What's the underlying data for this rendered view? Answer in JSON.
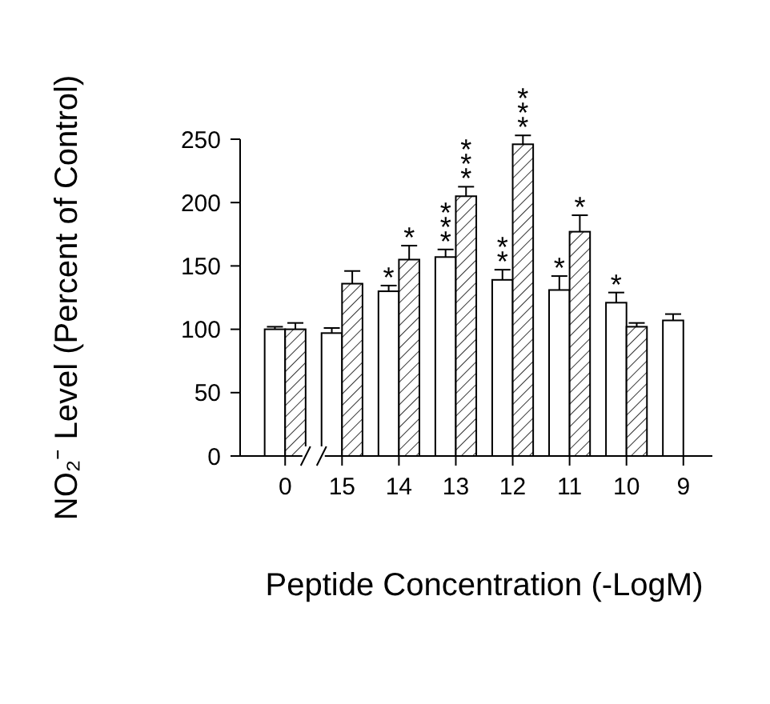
{
  "chart_data": {
    "type": "bar",
    "xlabel": "Peptide Concentration (-LogM)",
    "ylabel": "NO₂⁻ Level (Percent of Control)",
    "categories": [
      "0",
      "15",
      "14",
      "13",
      "12",
      "11",
      "10",
      "9"
    ],
    "ylim": [
      0,
      250
    ],
    "yticks": [
      0,
      50,
      100,
      150,
      200,
      250
    ],
    "series": [
      {
        "color": "#ffffff",
        "values": [
          100,
          97,
          130,
          157,
          139,
          131,
          121,
          107
        ],
        "errors": [
          2,
          4,
          4.5,
          6,
          8,
          11,
          8,
          5
        ]
      },
      {
        "color": "#000000",
        "values": [
          100,
          136,
          155,
          205,
          246,
          177,
          102,
          null
        ],
        "errors": [
          5,
          10,
          11,
          7.5,
          7,
          13,
          3,
          null
        ]
      }
    ],
    "annotations": [
      {
        "text": "*",
        "x": "14",
        "y": 130
      },
      {
        "text": "*",
        "x": "14",
        "y": 155
      },
      {
        "text": "***",
        "x": "13",
        "y": 157
      },
      {
        "text": "***",
        "x": "13",
        "y": 205
      },
      {
        "text": "**",
        "x": "12",
        "y": 139
      },
      {
        "text": "***",
        "x": "12",
        "y": 246
      },
      {
        "text": "*",
        "x": "11",
        "y": 131
      },
      {
        "text": "*",
        "x": "11",
        "y": 177
      },
      {
        "text": "*",
        "x": "10",
        "y": 121
      }
    ]
  }
}
